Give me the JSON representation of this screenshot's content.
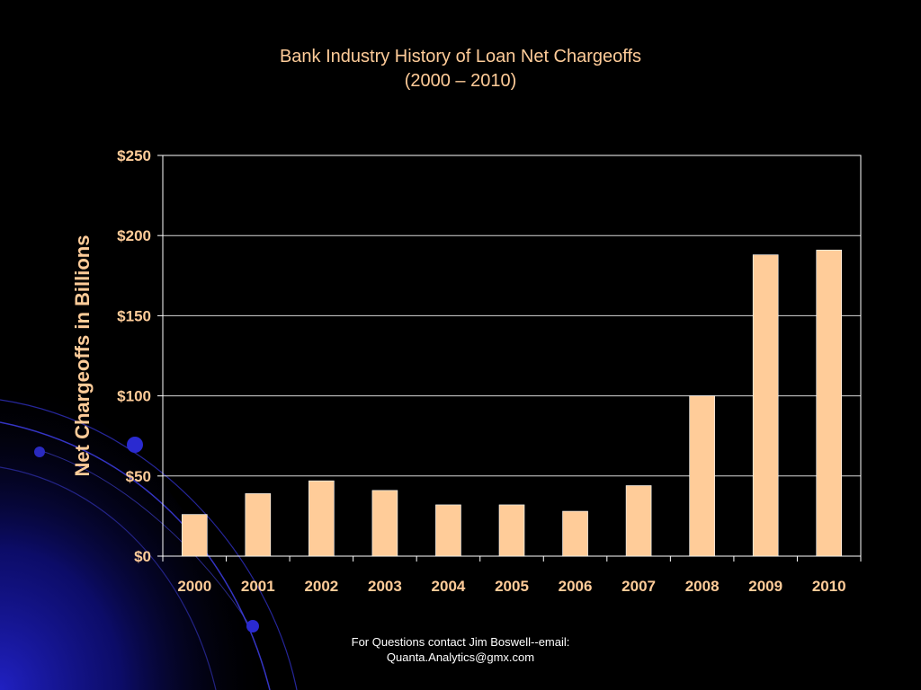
{
  "slide": {
    "title_line1": "Bank Industry History of Loan Net Chargeoffs",
    "title_line2": "(2000 – 2010)",
    "footer_line1": "For Questions contact Jim Boswell--email:",
    "footer_line2": "Quanta.Analytics@gmx.com",
    "colors": {
      "background": "#000000",
      "accent_text": "#FFCC99",
      "bar_fill": "#FFCC99",
      "gridline": "#FFFFFF",
      "decoration_blue": "#1A1AAA"
    }
  },
  "chart_data": {
    "type": "bar",
    "title": "Bank Industry History of Loan Net Chargeoffs (2000 – 2010)",
    "xlabel": "",
    "ylabel": "Net Chargeoffs in Billions",
    "categories": [
      "2000",
      "2001",
      "2002",
      "2003",
      "2004",
      "2005",
      "2006",
      "2007",
      "2008",
      "2009",
      "2010"
    ],
    "values": [
      26,
      39,
      47,
      41,
      32,
      32,
      28,
      44,
      100,
      188,
      191
    ],
    "ylim": [
      0,
      250
    ],
    "yticks": [
      0,
      50,
      100,
      150,
      200,
      250
    ],
    "ytick_labels": [
      "$0",
      "$50",
      "$100",
      "$150",
      "$200",
      "$250"
    ],
    "grid": true,
    "legend": "none"
  }
}
